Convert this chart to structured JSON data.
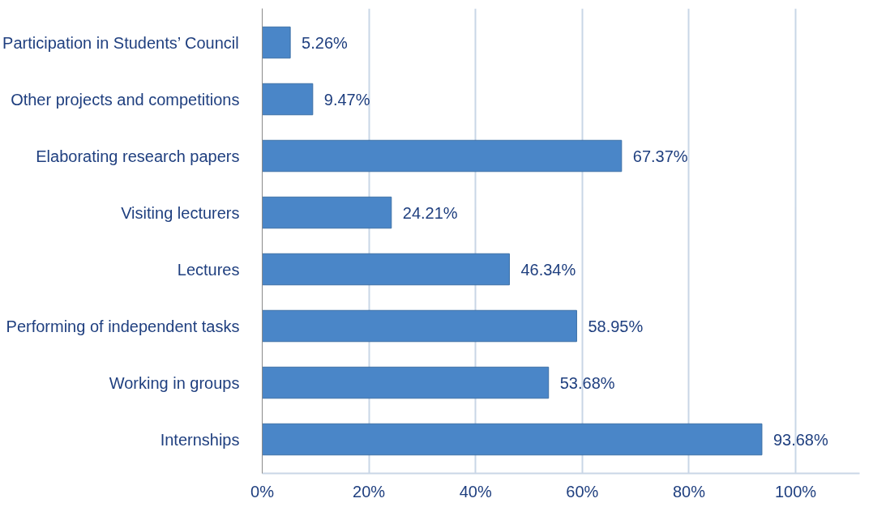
{
  "chart_data": {
    "type": "bar",
    "orientation": "horizontal",
    "categories": [
      "Participation in Students’ Council",
      "Other projects and competitions",
      "Elaborating research papers",
      "Visiting lecturers",
      "Lectures",
      "Performing of independent tasks",
      "Working in groups",
      "Internships"
    ],
    "values": [
      5.26,
      9.47,
      67.37,
      24.21,
      46.34,
      58.95,
      53.68,
      93.68
    ],
    "value_labels": [
      "5.26%",
      "9.47%",
      "67.37%",
      "24.21%",
      "46.34%",
      "58.95%",
      "53.68%",
      "93.68%"
    ],
    "color": "#4a86c8",
    "xlim": [
      0,
      112
    ],
    "xticks": [
      {
        "value": 0,
        "label": "0%"
      },
      {
        "value": 20,
        "label": "20%"
      },
      {
        "value": 40,
        "label": "40%"
      },
      {
        "value": 60,
        "label": "60%"
      },
      {
        "value": 80,
        "label": "80%"
      },
      {
        "value": 100,
        "label": "100%"
      }
    ],
    "grid": "x"
  }
}
